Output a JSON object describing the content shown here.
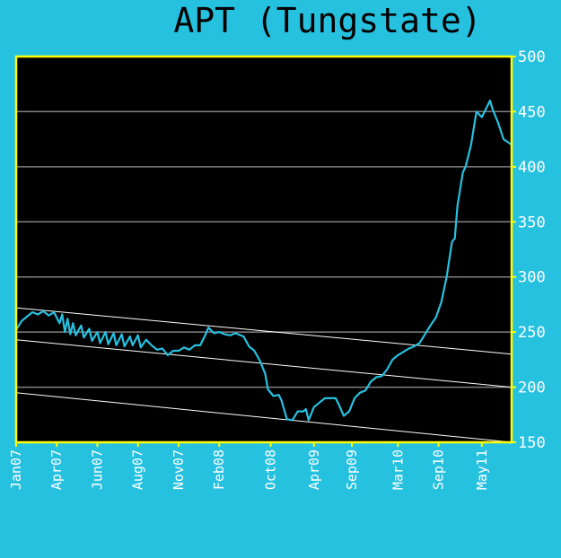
{
  "chart_data": {
    "type": "line",
    "title": "APT (Tungstate)",
    "xlabel": "",
    "ylabel": "",
    "ylim": [
      150,
      500
    ],
    "yticks": [
      150,
      200,
      250,
      300,
      350,
      400,
      450,
      500
    ],
    "xticks": [
      "Jan07",
      "Apr07",
      "Jun07",
      "Aug07",
      "Nov07",
      "Feb08",
      "Oct08",
      "Apr09",
      "Sep09",
      "Mar10",
      "Sep10",
      "May11"
    ],
    "grid": true,
    "series": [
      {
        "points": [
          [
            0,
            252
          ],
          [
            2,
            260
          ],
          [
            4,
            264
          ],
          [
            6,
            268
          ],
          [
            8,
            266
          ],
          [
            10,
            269
          ],
          [
            12,
            265
          ],
          [
            14,
            268
          ],
          [
            16,
            258
          ],
          [
            17,
            266
          ],
          [
            18,
            250
          ],
          [
            19,
            262
          ],
          [
            20,
            248
          ],
          [
            21,
            258
          ],
          [
            22,
            247
          ],
          [
            24,
            256
          ],
          [
            25,
            245
          ],
          [
            27,
            253
          ],
          [
            28,
            242
          ],
          [
            30,
            250
          ],
          [
            31,
            240
          ],
          [
            33,
            250
          ],
          [
            34,
            239
          ],
          [
            36,
            249
          ],
          [
            37,
            238
          ],
          [
            39,
            248
          ],
          [
            40,
            237
          ],
          [
            42,
            246
          ],
          [
            43,
            238
          ],
          [
            45,
            247
          ],
          [
            46,
            236
          ],
          [
            48,
            243
          ],
          [
            50,
            238
          ],
          [
            52,
            234
          ],
          [
            54,
            235
          ],
          [
            56,
            229
          ],
          [
            58,
            233
          ],
          [
            60,
            233
          ],
          [
            62,
            236
          ],
          [
            64,
            234
          ],
          [
            66,
            238
          ],
          [
            68,
            238
          ],
          [
            70,
            248
          ],
          [
            71,
            254
          ],
          [
            73,
            249
          ],
          [
            75,
            250
          ],
          [
            77,
            248
          ],
          [
            79,
            247
          ],
          [
            81,
            249
          ],
          [
            84,
            246
          ],
          [
            86,
            237
          ],
          [
            88,
            233
          ],
          [
            90,
            224
          ],
          [
            92,
            212
          ],
          [
            93,
            198
          ],
          [
            95,
            192
          ],
          [
            97,
            193
          ],
          [
            98,
            188
          ],
          [
            100,
            171
          ],
          [
            102,
            170
          ],
          [
            104,
            178
          ],
          [
            106,
            178
          ],
          [
            107,
            180
          ],
          [
            108,
            170
          ],
          [
            110,
            182
          ],
          [
            112,
            186
          ],
          [
            114,
            190
          ],
          [
            116,
            190
          ],
          [
            118,
            190
          ],
          [
            119,
            185
          ],
          [
            121,
            174
          ],
          [
            123,
            178
          ],
          [
            125,
            190
          ],
          [
            127,
            195
          ],
          [
            129,
            197
          ],
          [
            131,
            205
          ],
          [
            133,
            209
          ],
          [
            135,
            210
          ],
          [
            137,
            216
          ],
          [
            139,
            225
          ],
          [
            141,
            229
          ],
          [
            143,
            232
          ],
          [
            145,
            235
          ],
          [
            147,
            237
          ],
          [
            149,
            240
          ],
          [
            151,
            248
          ],
          [
            153,
            256
          ],
          [
            155,
            263
          ],
          [
            157,
            277
          ],
          [
            159,
            300
          ],
          [
            161,
            332
          ],
          [
            162,
            335
          ],
          [
            163,
            365
          ],
          [
            165,
            395
          ],
          [
            166,
            400
          ],
          [
            168,
            420
          ],
          [
            170,
            450
          ],
          [
            172,
            445
          ],
          [
            174,
            455
          ],
          [
            175,
            460
          ],
          [
            176,
            452
          ],
          [
            178,
            440
          ],
          [
            180,
            425
          ],
          [
            183,
            420
          ]
        ]
      }
    ],
    "trendlines": [
      {
        "from": [
          0,
          272
        ],
        "to": [
          183,
          230
        ]
      },
      {
        "from": [
          0,
          243
        ],
        "to": [
          183,
          200
        ]
      },
      {
        "from": [
          0,
          195
        ],
        "to": [
          183,
          150
        ]
      }
    ],
    "x_tick_positions": [
      0,
      15,
      30,
      45,
      60,
      75,
      94,
      110,
      124,
      141,
      156,
      172
    ],
    "xrange": [
      0,
      183
    ],
    "colors": {
      "background": "#27c1e0",
      "plot": "#000000",
      "axis": "#ffff00",
      "line": "#27c1e0",
      "grid": "#808080",
      "trend": "#ffffff"
    }
  }
}
